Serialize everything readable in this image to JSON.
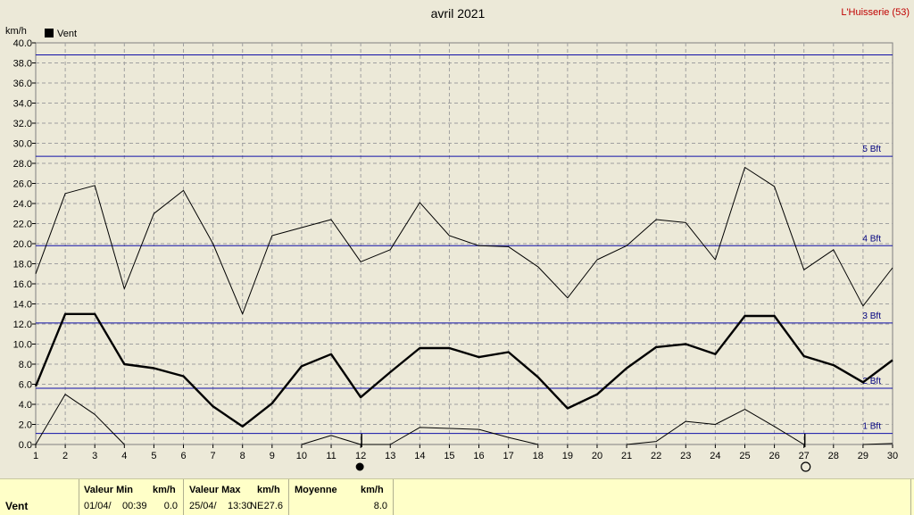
{
  "chart_data": {
    "type": "line",
    "title": "avril 2021",
    "station": "L'Huisserie (53)",
    "ylabel": "km/h",
    "legend": {
      "label": "Vent",
      "placement": "top-left"
    },
    "ylim": [
      0,
      40
    ],
    "ytick_step": 2,
    "grid": true,
    "x": [
      1,
      2,
      3,
      4,
      5,
      6,
      7,
      8,
      9,
      10,
      11,
      12,
      13,
      14,
      15,
      16,
      17,
      18,
      19,
      20,
      21,
      22,
      23,
      24,
      25,
      26,
      27,
      28,
      29,
      30
    ],
    "series": [
      {
        "name": "max",
        "values": [
          17.0,
          25.0,
          25.8,
          15.5,
          23.0,
          25.3,
          20.0,
          13.0,
          20.8,
          21.6,
          22.4,
          18.2,
          19.4,
          24.1,
          20.8,
          19.8,
          19.7,
          17.7,
          14.6,
          18.4,
          19.8,
          22.4,
          22.1,
          18.4,
          27.6,
          25.7,
          17.4,
          19.4,
          13.8,
          17.6
        ]
      },
      {
        "name": "moyenne",
        "values": [
          5.8,
          13.0,
          13.0,
          8.0,
          7.6,
          6.8,
          3.8,
          1.8,
          4.1,
          7.8,
          9.0,
          4.7,
          7.2,
          9.6,
          9.6,
          8.7,
          9.2,
          6.7,
          3.6,
          5.0,
          7.6,
          9.7,
          10.0,
          9.0,
          12.8,
          12.8,
          8.8,
          7.9,
          6.2,
          8.4
        ]
      },
      {
        "name": "min",
        "values": [
          0.0,
          5.0,
          3.0,
          0.0,
          null,
          null,
          null,
          null,
          null,
          0.0,
          0.9,
          0.0,
          0.0,
          1.7,
          1.6,
          1.5,
          0.7,
          0.0,
          null,
          null,
          0.0,
          0.3,
          2.3,
          2.0,
          3.5,
          1.8,
          0.0,
          null,
          0.0,
          0.1
        ]
      }
    ],
    "beaufort": [
      {
        "label": "",
        "value": 38.8
      },
      {
        "label": "5 Bft",
        "value": 28.7
      },
      {
        "label": "4 Bft",
        "value": 19.8
      },
      {
        "label": "3 Bft",
        "value": 12.1
      },
      {
        "label": "2 Bft",
        "value": 5.6
      },
      {
        "label": "1 Bft",
        "value": 1.1
      }
    ],
    "moon": {
      "new_moon_day": 12,
      "full_moon_day": 27
    }
  },
  "stats": {
    "name": "Vent",
    "min_header": "Valeur Min",
    "min_unit": "km/h",
    "min_date": "01/04/",
    "min_time": "00:39",
    "min_value": "0.0",
    "max_header": "Valeur Max",
    "max_unit": "km/h",
    "max_date": "25/04/",
    "max_time": "13:30",
    "max_dir": "NE",
    "max_value": "27.6",
    "avg_header": "Moyenne",
    "avg_unit": "km/h",
    "avg_value": "8.0"
  },
  "colors": {
    "grid": "#a0a0a0",
    "beaufort": "#1010a8",
    "series": "#000000",
    "station": "#c00000"
  }
}
